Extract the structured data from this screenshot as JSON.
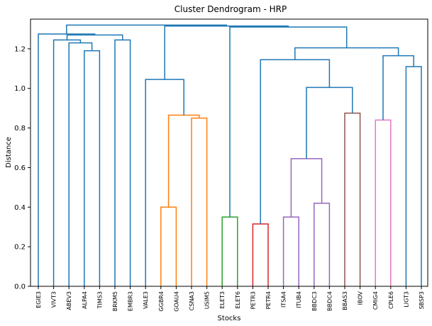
{
  "chart_data": {
    "type": "dendrogram",
    "title": "Cluster Dendrogram - HRP",
    "xlabel": "Stocks",
    "ylabel": "Distance",
    "ylim": [
      0,
      1.35
    ],
    "y_ticks": [
      "0.0",
      "0.2",
      "0.4",
      "0.6",
      "0.8",
      "1.0",
      "1.2"
    ],
    "leaves": [
      "EGIE3",
      "VIVT3",
      "ABEV3",
      "ALPA4",
      "TIMS3",
      "BRKM5",
      "EMBR3",
      "VALE3",
      "GGBR4",
      "GOAU4",
      "CSNA3",
      "USIM5",
      "ELET3",
      "ELET6",
      "PETR3",
      "PETR4",
      "ITSA4",
      "ITUB4",
      "BBDC3",
      "BBDC4",
      "BBAS3",
      "IBOV",
      "CMIG4",
      "CPLE6",
      "LIGT3",
      "SBSP3"
    ],
    "colors": {
      "above_threshold": "#1f77b4",
      "orange": "#ff7f0e",
      "green": "#2ca02c",
      "red": "#d62728",
      "purple": "#9467bd",
      "brown": "#8c564b",
      "pink": "#e377c2"
    },
    "merges": [
      {
        "id": "m1",
        "left": "GGBR4",
        "right": "GOAU4",
        "height": 0.4,
        "color": "orange"
      },
      {
        "id": "m2",
        "left": "CSNA3",
        "right": "USIM5",
        "height": 0.85,
        "color": "orange"
      },
      {
        "id": "m3",
        "left": "m1",
        "right": "m2",
        "height": 0.865,
        "color": "orange"
      },
      {
        "id": "m4",
        "left": "VALE3",
        "right": "m3",
        "height": 1.045,
        "color": "above_threshold"
      },
      {
        "id": "m5",
        "left": "ELET3",
        "right": "ELET6",
        "height": 0.35,
        "color": "green"
      },
      {
        "id": "m6",
        "left": "PETR3",
        "right": "PETR4",
        "height": 0.315,
        "color": "red"
      },
      {
        "id": "m7",
        "left": "ITSA4",
        "right": "ITUB4",
        "height": 0.35,
        "color": "purple"
      },
      {
        "id": "m8",
        "left": "BBDC3",
        "right": "BBDC4",
        "height": 0.42,
        "color": "purple"
      },
      {
        "id": "m9",
        "left": "m7",
        "right": "m8",
        "height": 0.645,
        "color": "purple"
      },
      {
        "id": "m10",
        "left": "BBAS3",
        "right": "IBOV",
        "height": 0.875,
        "color": "brown"
      },
      {
        "id": "m11",
        "left": "m9",
        "right": "m10",
        "height": 1.005,
        "color": "above_threshold"
      },
      {
        "id": "m12",
        "left": "m6",
        "right": "m11",
        "height": 1.145,
        "color": "above_threshold"
      },
      {
        "id": "m13",
        "left": "CMIG4",
        "right": "CPLE6",
        "height": 0.84,
        "color": "pink"
      },
      {
        "id": "m14",
        "left": "LIGT3",
        "right": "SBSP3",
        "height": 1.11,
        "color": "above_threshold"
      },
      {
        "id": "m15",
        "left": "m13",
        "right": "m14",
        "height": 1.165,
        "color": "above_threshold"
      },
      {
        "id": "m16",
        "left": "m12",
        "right": "m15",
        "height": 1.205,
        "color": "above_threshold"
      },
      {
        "id": "m17",
        "left": "m5",
        "right": "m16",
        "height": 1.31,
        "color": "above_threshold"
      },
      {
        "id": "m18",
        "left": "m4",
        "right": "m17",
        "height": 1.315,
        "color": "above_threshold"
      },
      {
        "id": "m19",
        "left": "ALPA4",
        "right": "TIMS3",
        "height": 1.19,
        "color": "above_threshold"
      },
      {
        "id": "m20",
        "left": "ABEV3",
        "right": "m19",
        "height": 1.23,
        "color": "above_threshold"
      },
      {
        "id": "m21",
        "left": "VIVT3",
        "right": "m20",
        "height": 1.245,
        "color": "above_threshold"
      },
      {
        "id": "m22",
        "left": "BRKM5",
        "right": "EMBR3",
        "height": 1.245,
        "color": "above_threshold"
      },
      {
        "id": "m23",
        "left": "m21",
        "right": "m22",
        "height": 1.27,
        "color": "above_threshold"
      },
      {
        "id": "m24",
        "left": "EGIE3",
        "right": "m23",
        "height": 1.275,
        "color": "above_threshold"
      },
      {
        "id": "m25",
        "left": "m24",
        "right": "m18",
        "height": 1.32,
        "color": "above_threshold"
      }
    ]
  }
}
